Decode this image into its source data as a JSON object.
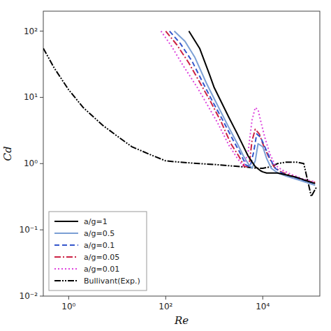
{
  "chart_data": {
    "type": "line",
    "xlabel": "Re",
    "ylabel": "Cd",
    "log": true,
    "grid": false,
    "legend": "lower left",
    "xlim": [
      0.3,
      150000
    ],
    "ylim": [
      0.01,
      200
    ],
    "xticks": [
      {
        "value": 1,
        "label": "10⁰"
      },
      {
        "value": 100,
        "label": "10²"
      },
      {
        "value": 10000,
        "label": "10⁴"
      }
    ],
    "yticks": [
      {
        "value": 0.01,
        "label": "10⁻²"
      },
      {
        "value": 0.1,
        "label": "10⁻¹"
      },
      {
        "value": 1,
        "label": "10⁰"
      },
      {
        "value": 10,
        "label": "10¹"
      },
      {
        "value": 100,
        "label": "10²"
      }
    ],
    "series": [
      {
        "name": "a/g=1",
        "color": "#000000",
        "line_style": "solid",
        "x": [
          300,
          500,
          800,
          1000,
          2000,
          3000,
          5000,
          7000,
          9000,
          10000,
          12000,
          15000,
          20000,
          30000,
          50000,
          80000,
          120000
        ],
        "values": [
          100,
          55,
          22,
          14,
          5.0,
          2.8,
          1.3,
          0.9,
          0.78,
          0.75,
          0.72,
          0.72,
          0.72,
          0.68,
          0.62,
          0.55,
          0.5
        ]
      },
      {
        "name": "a/g=0.5",
        "color": "#7b9fd4",
        "line_style": "solid",
        "x": [
          150,
          250,
          400,
          700,
          1000,
          2000,
          3000,
          4000,
          5000,
          6000,
          7000,
          8000,
          10000,
          12000,
          15000,
          20000,
          30000,
          50000,
          80000,
          120000
        ],
        "values": [
          100,
          70,
          40,
          16,
          9.5,
          3.5,
          2.0,
          1.3,
          1.0,
          0.85,
          1.1,
          2.0,
          1.8,
          1.2,
          0.85,
          0.73,
          0.65,
          0.58,
          0.52,
          0.47
        ]
      },
      {
        "name": "a/g=0.1",
        "color": "#3355cc",
        "line_style": "dashed",
        "x": [
          120,
          200,
          350,
          600,
          900,
          1500,
          2500,
          3500,
          4500,
          5500,
          6500,
          7500,
          9000,
          11000,
          14000,
          18000,
          25000,
          40000,
          70000,
          120000
        ],
        "values": [
          100,
          65,
          35,
          16,
          9.0,
          4.5,
          2.2,
          1.4,
          0.95,
          0.9,
          1.5,
          2.8,
          2.5,
          1.8,
          1.2,
          0.85,
          0.72,
          0.63,
          0.55,
          0.5
        ]
      },
      {
        "name": "a/g=0.05",
        "color": "#cc2244",
        "line_style": "dashdot",
        "x": [
          100,
          170,
          300,
          550,
          850,
          1400,
          2200,
          3200,
          4200,
          5200,
          6000,
          7000,
          8500,
          10000,
          13000,
          17000,
          23000,
          38000,
          65000,
          120000
        ],
        "values": [
          100,
          62,
          33,
          15,
          8.5,
          4.2,
          2.0,
          1.3,
          0.9,
          0.9,
          2.2,
          3.3,
          2.8,
          2.0,
          1.3,
          0.9,
          0.76,
          0.66,
          0.57,
          0.52
        ]
      },
      {
        "name": "a/g=0.01",
        "color": "#dd44dd",
        "line_style": "dotted",
        "x": [
          80,
          130,
          230,
          450,
          700,
          1200,
          2000,
          3000,
          4000,
          5000,
          6000,
          7000,
          8000,
          9000,
          11000,
          14000,
          18000,
          25000,
          40000,
          70000,
          120000
        ],
        "values": [
          100,
          60,
          30,
          14,
          8.0,
          4.0,
          1.9,
          1.2,
          0.9,
          1.5,
          4.5,
          7.0,
          6.5,
          4.5,
          2.5,
          1.4,
          0.95,
          0.8,
          0.68,
          0.58,
          0.53
        ]
      },
      {
        "name": "Bullivant(Exp.)",
        "color": "#000000",
        "line_style": "dashdotdot",
        "x": [
          0.3,
          0.5,
          1.0,
          2.0,
          5.0,
          10,
          20,
          50,
          100,
          200,
          500,
          1000,
          2000,
          5000,
          8000,
          10000,
          15000,
          20000,
          30000,
          50000,
          70000,
          100000,
          130000
        ],
        "values": [
          55,
          28,
          13,
          7.0,
          3.8,
          2.6,
          1.8,
          1.35,
          1.1,
          1.05,
          1.0,
          0.97,
          0.93,
          0.88,
          0.85,
          0.85,
          0.9,
          1.0,
          1.05,
          1.05,
          1.0,
          0.32,
          0.45
        ]
      }
    ]
  }
}
